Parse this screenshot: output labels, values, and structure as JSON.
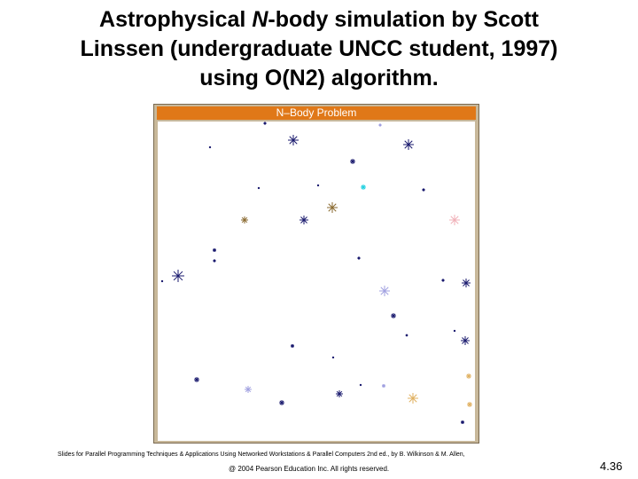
{
  "header": {
    "title": {
      "line1": {
        "before": "Astrophysical ",
        "italic": "N",
        "after": "-body simulation by Scott"
      },
      "line2": "Linssen (undergraduate UNCC student, 1997)",
      "line3": "using O(N2) algorithm."
    }
  },
  "window": {
    "title": "N–Body Problem"
  },
  "footer": {
    "credit": "Slides for Parallel Programming Techniques & Applications Using Networked Workstations & Parallel Computers 2nd ed., by B. Wilkinson & M. Allen,",
    "copyright": "@ 2004 Pearson Education Inc. All rights reserved.",
    "page": "4.36"
  }
}
